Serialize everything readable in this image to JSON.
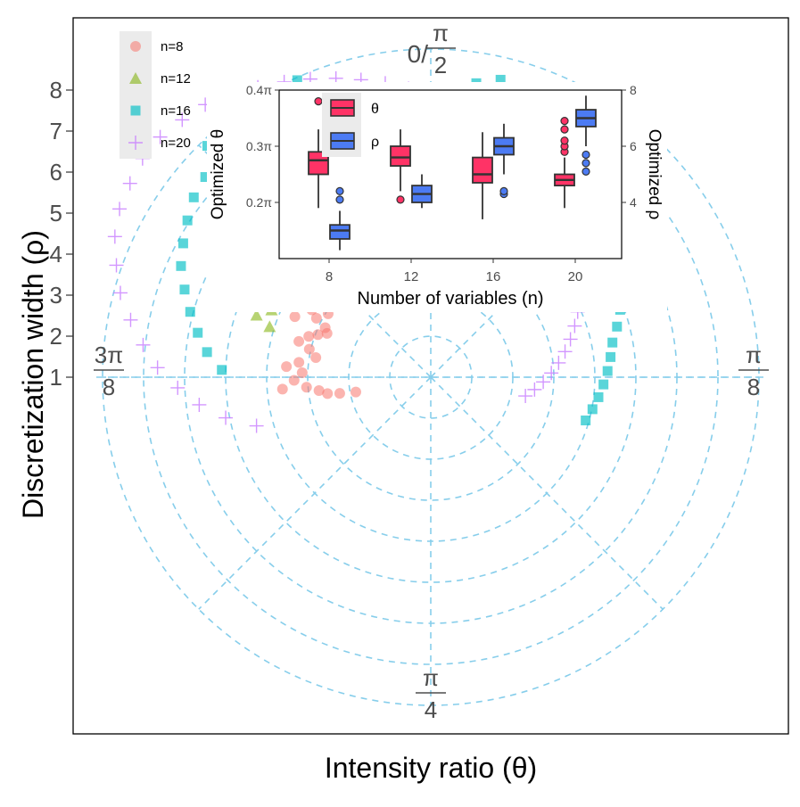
{
  "chart_data": [
    {
      "type": "scatter",
      "subtype": "polar",
      "xlabel": "Intensity ratio (θ)",
      "ylabel": "Discretization width (ρ)",
      "y_ticks": [
        "1",
        "2",
        "3",
        "4",
        "5",
        "6",
        "7",
        "8"
      ],
      "angle_labels": [
        {
          "pos": "top",
          "num": "π",
          "den": "2",
          "prefix": "0/"
        },
        {
          "pos": "right",
          "num": "π",
          "den": "8",
          "prefix": ""
        },
        {
          "pos": "bottom",
          "num": "π",
          "den": "4",
          "prefix": ""
        },
        {
          "pos": "left",
          "num": "3π",
          "den": "8",
          "prefix": ""
        }
      ],
      "grid": "dashed polar",
      "grid_color": "#87CEEB",
      "legend_position": "top-left",
      "series": [
        {
          "name": "n=8",
          "marker": "circle",
          "color": "#F8766D",
          "points": [
            [
              0.04,
              1.9
            ],
            [
              0.045,
              2.3
            ],
            [
              0.05,
              2.6
            ],
            [
              0.06,
              2.8
            ],
            [
              0.07,
              3.1
            ],
            [
              0.085,
              3.4
            ],
            [
              0.1,
              3.2
            ],
            [
              0.11,
              3.6
            ],
            [
              0.12,
              3.3
            ],
            [
              0.135,
              2.9
            ],
            [
              0.15,
              3.1
            ],
            [
              0.16,
              3.4
            ],
            [
              0.175,
              3.2
            ],
            [
              0.185,
              3.0
            ],
            [
              0.195,
              2.8
            ],
            [
              0.205,
              2.9
            ],
            [
              0.215,
              3.2
            ],
            [
              0.225,
              3.4
            ],
            [
              0.235,
              3.0
            ],
            [
              0.245,
              3.5
            ],
            [
              0.255,
              3.3
            ],
            [
              0.265,
              3.1
            ],
            [
              0.275,
              2.9
            ],
            [
              0.285,
              3.2
            ],
            [
              0.295,
              3.6
            ],
            [
              0.305,
              3.0
            ],
            [
              0.315,
              3.3
            ],
            [
              0.325,
              3.1
            ],
            [
              0.335,
              3.4
            ],
            [
              0.345,
              2.9
            ],
            [
              0.355,
              3.2
            ],
            [
              0.365,
              3.0
            ],
            [
              0.38,
              3.5
            ],
            [
              0.395,
              3.2
            ],
            [
              0.41,
              3.8
            ],
            [
              0.425,
              3.6
            ],
            [
              0.44,
              3.3
            ],
            [
              0.455,
              3.9
            ],
            [
              0.47,
              3.5
            ],
            [
              0.485,
              3.2
            ],
            [
              0.07,
              3.7
            ],
            [
              0.2,
              3.7
            ],
            [
              0.3,
              3.8
            ],
            [
              0.33,
              3.7
            ]
          ]
        },
        {
          "name": "n=12",
          "marker": "triangle",
          "color": "#7CAE00",
          "points": [
            [
              0.17,
              4.2
            ],
            [
              0.18,
              4.6
            ],
            [
              0.195,
              4.3
            ],
            [
              0.205,
              4.7
            ],
            [
              0.215,
              4.4
            ],
            [
              0.225,
              4.8
            ],
            [
              0.235,
              4.5
            ],
            [
              0.245,
              4.9
            ],
            [
              0.255,
              4.6
            ],
            [
              0.265,
              5.0
            ],
            [
              0.275,
              4.7
            ],
            [
              0.285,
              5.1
            ],
            [
              0.295,
              4.8
            ],
            [
              0.305,
              5.2
            ],
            [
              0.315,
              4.9
            ],
            [
              0.325,
              5.3
            ],
            [
              0.335,
              5.0
            ],
            [
              0.345,
              5.4
            ],
            [
              0.355,
              5.1
            ],
            [
              0.365,
              5.5
            ],
            [
              0.375,
              5.2
            ],
            [
              0.385,
              5.6
            ],
            [
              0.395,
              5.3
            ],
            [
              0.405,
              5.7
            ],
            [
              0.415,
              5.4
            ],
            [
              0.425,
              5.8
            ],
            [
              0.435,
              5.5
            ],
            [
              0.45,
              5.2
            ],
            [
              0.465,
              5.6
            ],
            [
              0.48,
              5.0
            ],
            [
              0.495,
              4.6
            ],
            [
              0.51,
              4.3
            ],
            [
              0.525,
              4.0
            ],
            [
              0.54,
              3.8
            ],
            [
              0.56,
              3.6
            ],
            [
              0.4,
              6.0
            ],
            [
              0.42,
              6.2
            ],
            [
              0.44,
              6.3
            ],
            [
              0.24,
              5.3
            ],
            [
              0.28,
              5.6
            ],
            [
              0.32,
              5.8
            ],
            [
              0.36,
              6.0
            ]
          ]
        },
        {
          "name": "n=16",
          "marker": "square",
          "color": "#00BFC4",
          "points": [
            [
              0.1,
              5.2
            ],
            [
              0.12,
              5.6
            ],
            [
              0.14,
              5.9
            ],
            [
              0.16,
              6.2
            ],
            [
              0.18,
              6.5
            ],
            [
              0.2,
              6.8
            ],
            [
              0.22,
              7.0
            ],
            [
              0.24,
              7.2
            ],
            [
              0.26,
              7.4
            ],
            [
              0.28,
              7.5
            ],
            [
              0.3,
              7.6
            ],
            [
              0.32,
              7.5
            ],
            [
              0.34,
              7.4
            ],
            [
              0.36,
              7.2
            ],
            [
              0.38,
              7.0
            ],
            [
              0.4,
              6.8
            ],
            [
              0.42,
              6.6
            ],
            [
              0.44,
              6.4
            ],
            [
              0.46,
              6.6
            ],
            [
              0.48,
              6.8
            ],
            [
              0.5,
              7.0
            ],
            [
              0.52,
              7.2
            ],
            [
              0.54,
              7.4
            ],
            [
              0.56,
              7.6
            ],
            [
              0.58,
              7.4
            ],
            [
              0.6,
              7.2
            ],
            [
              0.62,
              7.0
            ],
            [
              0.64,
              6.8
            ],
            [
              0.66,
              6.6
            ],
            [
              0.68,
              6.4
            ],
            [
              0.7,
              6.2
            ],
            [
              0.72,
              6.0
            ],
            [
              0.74,
              5.8
            ],
            [
              0.76,
              5.6
            ],
            [
              0.78,
              5.4
            ],
            [
              0.8,
              5.2
            ],
            [
              0.82,
              5.0
            ],
            [
              0.84,
              4.8
            ],
            [
              0.86,
              4.6
            ],
            [
              0.88,
              4.5
            ],
            [
              0.9,
              4.4
            ],
            [
              0.92,
              4.3
            ],
            [
              0.94,
              4.2
            ],
            [
              0.96,
              4.1
            ],
            [
              0.98,
              4.0
            ],
            [
              0.3,
              8.0
            ],
            [
              0.33,
              8.2
            ],
            [
              0.36,
              7.9
            ],
            [
              0.39,
              8.1
            ]
          ]
        },
        {
          "name": "n=20",
          "marker": "plus",
          "color": "#C77CFF",
          "points": [
            [
              0.02,
              4.5
            ],
            [
              0.04,
              5.2
            ],
            [
              0.06,
              5.8
            ],
            [
              0.08,
              6.3
            ],
            [
              0.1,
              6.8
            ],
            [
              0.12,
              7.2
            ],
            [
              0.14,
              7.6
            ],
            [
              0.16,
              8.0
            ],
            [
              0.18,
              8.3
            ],
            [
              0.2,
              8.6
            ],
            [
              0.22,
              8.8
            ],
            [
              0.24,
              8.9
            ],
            [
              0.26,
              9.0
            ],
            [
              0.28,
              9.0
            ],
            [
              0.3,
              8.9
            ],
            [
              0.32,
              8.8
            ],
            [
              0.34,
              8.6
            ],
            [
              0.36,
              8.4
            ],
            [
              0.38,
              8.2
            ],
            [
              0.4,
              8.0
            ],
            [
              0.42,
              7.8
            ],
            [
              0.44,
              7.6
            ],
            [
              0.46,
              7.4
            ],
            [
              0.48,
              7.2
            ],
            [
              0.5,
              7.0
            ],
            [
              0.52,
              6.8
            ],
            [
              0.54,
              6.6
            ],
            [
              0.56,
              6.4
            ],
            [
              0.58,
              6.2
            ],
            [
              0.6,
              6.0
            ],
            [
              0.62,
              5.8
            ],
            [
              0.64,
              5.6
            ],
            [
              0.66,
              5.4
            ],
            [
              0.68,
              5.2
            ],
            [
              0.7,
              5.0
            ],
            [
              0.72,
              4.8
            ],
            [
              0.74,
              4.6
            ],
            [
              0.76,
              4.4
            ],
            [
              0.78,
              4.2
            ],
            [
              0.8,
              4.0
            ],
            [
              0.82,
              3.8
            ],
            [
              0.84,
              3.6
            ],
            [
              0.86,
              3.4
            ],
            [
              0.88,
              3.2
            ],
            [
              0.9,
              3.0
            ],
            [
              0.92,
              2.8
            ],
            [
              0.94,
              2.6
            ],
            [
              0.96,
              2.4
            ]
          ]
        }
      ]
    },
    {
      "type": "boxplot",
      "xlabel": "Number of variables (n)",
      "ylabel_left": "Optimized θ",
      "ylabel_right": "Optimized ρ",
      "categories": [
        "8",
        "12",
        "16",
        "20"
      ],
      "y_ticks_left": [
        "0.2π",
        "0.3π",
        "0.4π"
      ],
      "y_ticks_right": [
        "4",
        "6",
        "8"
      ],
      "legend_position": "top-left",
      "series": [
        {
          "name": "θ",
          "color": "#FF3366",
          "axis": "left",
          "boxes": [
            {
              "category": "8",
              "min": 0.19,
              "q1": 0.25,
              "median": 0.275,
              "q3": 0.29,
              "max": 0.33,
              "outliers": [
                0.38
              ]
            },
            {
              "category": "12",
              "min": 0.22,
              "q1": 0.265,
              "median": 0.28,
              "q3": 0.3,
              "max": 0.33,
              "outliers": [
                0.205
              ]
            },
            {
              "category": "16",
              "min": 0.17,
              "q1": 0.235,
              "median": 0.25,
              "q3": 0.28,
              "max": 0.325,
              "outliers": []
            },
            {
              "category": "20",
              "min": 0.19,
              "q1": 0.23,
              "median": 0.24,
              "q3": 0.25,
              "max": 0.28,
              "outliers": [
                0.29,
                0.3,
                0.31,
                0.33,
                0.345
              ]
            }
          ]
        },
        {
          "name": "ρ",
          "color": "#4C7BF3",
          "axis": "right",
          "boxes": [
            {
              "category": "8",
              "min": 2.3,
              "q1": 2.7,
              "median": 3.0,
              "q3": 3.2,
              "max": 3.7,
              "outliers": [
                4.1,
                4.4
              ]
            },
            {
              "category": "12",
              "min": 3.8,
              "q1": 4.0,
              "median": 4.3,
              "q3": 4.6,
              "max": 5.0,
              "outliers": []
            },
            {
              "category": "16",
              "min": 5.0,
              "q1": 5.7,
              "median": 6.0,
              "q3": 6.3,
              "max": 6.8,
              "outliers": [
                4.3,
                4.4
              ]
            },
            {
              "category": "20",
              "min": 6.0,
              "q1": 6.7,
              "median": 7.0,
              "q3": 7.3,
              "max": 7.8,
              "outliers": [
                5.1,
                5.4,
                5.7
              ]
            }
          ]
        }
      ]
    }
  ]
}
